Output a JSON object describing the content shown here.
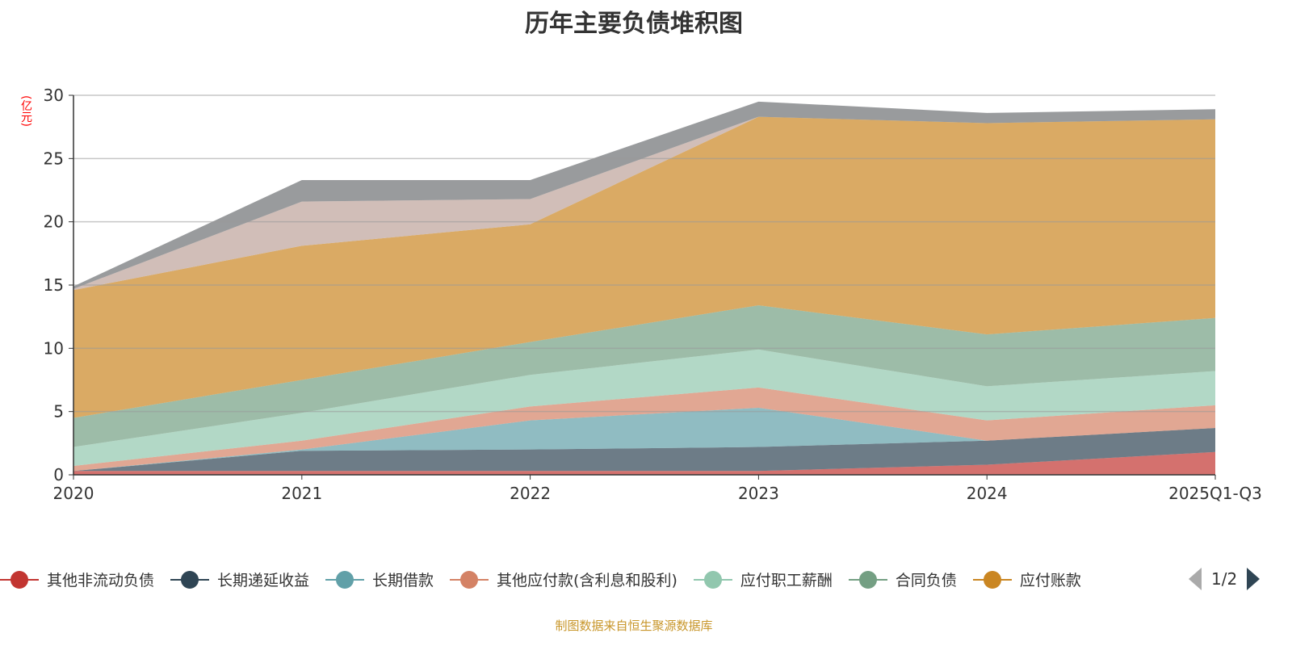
{
  "title": "历年主要负债堆积图",
  "source": "制图数据来自恒生聚源数据库",
  "pager": {
    "text": "1/2"
  },
  "chart_data": {
    "type": "area",
    "stacked": true,
    "title": "历年主要负债堆积图",
    "ylabel": "(亿元)",
    "ylim": [
      0,
      30
    ],
    "yticks": [
      0,
      5,
      10,
      15,
      20,
      25,
      30
    ],
    "grid": true,
    "categories": [
      "2020",
      "2021",
      "2022",
      "2023",
      "2024",
      "2025Q1-Q3"
    ],
    "legend_position": "bottom",
    "series": [
      {
        "name": "其他非流动负债",
        "color": "#c23531",
        "values": [
          0.3,
          0.3,
          0.3,
          0.3,
          0.8,
          1.8
        ]
      },
      {
        "name": "长期递延收益",
        "color": "#2f4554",
        "values": [
          0,
          1.6,
          1.7,
          1.9,
          1.9,
          1.9
        ]
      },
      {
        "name": "长期借款",
        "color": "#61a0a8",
        "values": [
          0,
          0.1,
          2.3,
          3.1,
          0,
          0
        ]
      },
      {
        "name": "其他应付款(含利息和股利)",
        "color": "#d48265",
        "values": [
          0.4,
          0.7,
          1.1,
          1.6,
          1.6,
          1.8
        ]
      },
      {
        "name": "应付职工薪酬",
        "color": "#91c7ae",
        "values": [
          1.5,
          2.2,
          2.5,
          3.0,
          2.7,
          2.7
        ]
      },
      {
        "name": "合同负债",
        "color": "#749f83",
        "values": [
          2.3,
          2.6,
          2.6,
          3.5,
          4.1,
          4.2
        ]
      },
      {
        "name": "应付账款",
        "color": "#ca8622",
        "values": [
          10.1,
          10.6,
          9.3,
          14.9,
          16.7,
          15.7
        ]
      },
      {
        "color": "#bda29a",
        "values": [
          0.1,
          3.5,
          2.0,
          0,
          0,
          0
        ]
      },
      {
        "color": "#6e7074",
        "values": [
          0.2,
          1.7,
          1.5,
          1.2,
          0.8,
          0.8
        ]
      }
    ]
  }
}
